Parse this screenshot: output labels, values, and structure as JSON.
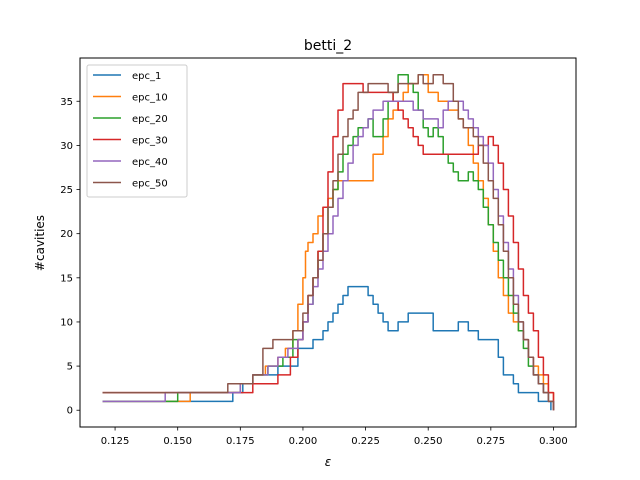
{
  "chart_data": {
    "type": "line",
    "title": "betti_2",
    "xlabel": "ε",
    "ylabel": "#cavities",
    "xlim": [
      0.111,
      0.309
    ],
    "ylim": [
      -1.9,
      39.9
    ],
    "x_ticks": [
      0.125,
      0.15,
      0.175,
      0.2,
      0.225,
      0.25,
      0.275,
      0.3
    ],
    "x_tick_labels": [
      "0.125",
      "0.150",
      "0.175",
      "0.200",
      "0.225",
      "0.250",
      "0.275",
      "0.300"
    ],
    "y_ticks": [
      0,
      5,
      10,
      15,
      20,
      25,
      30,
      35
    ],
    "y_tick_labels": [
      "0",
      "5",
      "10",
      "15",
      "20",
      "25",
      "30",
      "35"
    ],
    "grid": false,
    "legend_position": "top-left",
    "series": [
      {
        "name": "epc_1",
        "color": "#1f77b4",
        "x": [
          0.12,
          0.17,
          0.172,
          0.176,
          0.18,
          0.184,
          0.19,
          0.198,
          0.204,
          0.208,
          0.21,
          0.212,
          0.214,
          0.216,
          0.218,
          0.224,
          0.226,
          0.228,
          0.23,
          0.232,
          0.234,
          0.238,
          0.242,
          0.25,
          0.252,
          0.26,
          0.262,
          0.266,
          0.27,
          0.278,
          0.28,
          0.284,
          0.286,
          0.288,
          0.29,
          0.294,
          0.296,
          0.298,
          0.299
        ],
        "y": [
          1,
          1,
          2,
          3,
          4,
          4,
          5,
          7,
          8,
          9,
          10,
          11,
          12,
          13,
          14,
          14,
          13,
          12,
          11,
          10,
          9,
          10,
          11,
          11,
          9,
          9,
          10,
          9,
          8,
          6,
          4,
          3,
          2,
          2,
          2,
          1,
          1,
          1,
          0
        ]
      },
      {
        "name": "epc_10",
        "color": "#ff7f0e",
        "x": [
          0.12,
          0.14,
          0.15,
          0.155,
          0.175,
          0.18,
          0.185,
          0.19,
          0.193,
          0.196,
          0.198,
          0.2,
          0.201,
          0.202,
          0.204,
          0.206,
          0.208,
          0.21,
          0.212,
          0.214,
          0.218,
          0.222,
          0.226,
          0.228,
          0.232,
          0.234,
          0.236,
          0.238,
          0.24,
          0.242,
          0.244,
          0.246,
          0.25,
          0.254,
          0.258,
          0.262,
          0.264,
          0.266,
          0.268,
          0.27,
          0.272,
          0.274,
          0.276,
          0.278,
          0.28,
          0.282,
          0.284,
          0.286,
          0.288,
          0.29,
          0.292,
          0.294,
          0.296,
          0.298,
          0.3
        ],
        "y": [
          1,
          1,
          1,
          2,
          3,
          4,
          5,
          6,
          7,
          9,
          12,
          15,
          18,
          19,
          20,
          22,
          23,
          24,
          25,
          26,
          26,
          26,
          26,
          29,
          31,
          33,
          34,
          35,
          36,
          37,
          37,
          38,
          36,
          35,
          34,
          33,
          32,
          30,
          28,
          26,
          24,
          21,
          18,
          15,
          13,
          11,
          10,
          9,
          8,
          6,
          5,
          4,
          3,
          2,
          0
        ]
      },
      {
        "name": "epc_20",
        "color": "#2ca02c",
        "x": [
          0.12,
          0.13,
          0.145,
          0.15,
          0.16,
          0.165,
          0.175,
          0.18,
          0.186,
          0.192,
          0.196,
          0.2,
          0.202,
          0.204,
          0.206,
          0.208,
          0.21,
          0.212,
          0.214,
          0.216,
          0.218,
          0.22,
          0.222,
          0.226,
          0.228,
          0.232,
          0.234,
          0.236,
          0.238,
          0.24,
          0.242,
          0.244,
          0.246,
          0.248,
          0.25,
          0.252,
          0.254,
          0.256,
          0.258,
          0.26,
          0.262,
          0.264,
          0.266,
          0.268,
          0.27,
          0.272,
          0.274,
          0.276,
          0.278,
          0.28,
          0.282,
          0.284,
          0.286,
          0.288,
          0.29,
          0.292,
          0.294,
          0.296,
          0.298,
          0.3
        ],
        "y": [
          1,
          1,
          1,
          2,
          2,
          2,
          3,
          4,
          5,
          6,
          8,
          10,
          12,
          15,
          18,
          20,
          23,
          25,
          27,
          29,
          30,
          31,
          32,
          33,
          31,
          33,
          35,
          36,
          38,
          38,
          37,
          36,
          34,
          32,
          31,
          32,
          31,
          29,
          28,
          27,
          26,
          26,
          27,
          26,
          25,
          23,
          21,
          19,
          17,
          15,
          13,
          11,
          9,
          7,
          5,
          4,
          3,
          2,
          1,
          0
        ]
      },
      {
        "name": "epc_30",
        "color": "#d62728",
        "x": [
          0.12,
          0.16,
          0.18,
          0.19,
          0.195,
          0.198,
          0.2,
          0.202,
          0.204,
          0.206,
          0.208,
          0.21,
          0.212,
          0.214,
          0.216,
          0.222,
          0.224,
          0.228,
          0.232,
          0.236,
          0.238,
          0.24,
          0.242,
          0.244,
          0.246,
          0.248,
          0.25,
          0.252,
          0.254,
          0.256,
          0.26,
          0.268,
          0.27,
          0.272,
          0.274,
          0.276,
          0.278,
          0.28,
          0.282,
          0.284,
          0.286,
          0.288,
          0.29,
          0.292,
          0.294,
          0.296,
          0.298,
          0.3
        ],
        "y": [
          2,
          2,
          3,
          4,
          6,
          8,
          10,
          13,
          15,
          18,
          23,
          27,
          31,
          34,
          37,
          37,
          36,
          36,
          36,
          35,
          34,
          33,
          32,
          31,
          30,
          29,
          29,
          29,
          29,
          29,
          29,
          29,
          30,
          30,
          31,
          30,
          28,
          25,
          22,
          19,
          16,
          13,
          11,
          9,
          6,
          4,
          2,
          0
        ]
      },
      {
        "name": "epc_40",
        "color": "#9467bd",
        "x": [
          0.12,
          0.13,
          0.14,
          0.145,
          0.165,
          0.175,
          0.18,
          0.186,
          0.19,
          0.194,
          0.198,
          0.2,
          0.202,
          0.204,
          0.206,
          0.208,
          0.21,
          0.212,
          0.214,
          0.216,
          0.218,
          0.22,
          0.222,
          0.224,
          0.226,
          0.228,
          0.232,
          0.236,
          0.24,
          0.244,
          0.248,
          0.252,
          0.254,
          0.256,
          0.258,
          0.26,
          0.264,
          0.266,
          0.268,
          0.27,
          0.272,
          0.274,
          0.276,
          0.278,
          0.28,
          0.282,
          0.284,
          0.286,
          0.288,
          0.29,
          0.292,
          0.294,
          0.296,
          0.298,
          0.3
        ],
        "y": [
          1,
          1,
          1,
          2,
          2,
          3,
          4,
          5,
          6,
          7,
          8,
          10,
          12,
          14,
          16,
          18,
          20,
          22,
          24,
          26,
          28,
          30,
          31,
          32,
          33,
          34,
          35,
          35,
          35,
          34,
          33,
          33,
          32,
          34,
          35,
          35,
          34,
          33,
          32,
          31,
          30,
          28,
          25,
          22,
          19,
          16,
          13,
          10,
          8,
          6,
          4,
          3,
          2,
          1,
          0
        ]
      },
      {
        "name": "epc_50",
        "color": "#8c564b",
        "x": [
          0.12,
          0.16,
          0.17,
          0.176,
          0.18,
          0.184,
          0.188,
          0.192,
          0.196,
          0.2,
          0.202,
          0.204,
          0.206,
          0.208,
          0.21,
          0.212,
          0.214,
          0.216,
          0.218,
          0.22,
          0.222,
          0.226,
          0.23,
          0.234,
          0.238,
          0.242,
          0.246,
          0.248,
          0.252,
          0.256,
          0.26,
          0.262,
          0.264,
          0.268,
          0.27,
          0.272,
          0.274,
          0.276,
          0.278,
          0.28,
          0.282,
          0.284,
          0.286,
          0.288,
          0.29,
          0.292,
          0.294,
          0.296,
          0.298,
          0.3
        ],
        "y": [
          2,
          2,
          3,
          3,
          4,
          7,
          8,
          8,
          9,
          11,
          13,
          15,
          17,
          20,
          23,
          26,
          29,
          31,
          33,
          34,
          36,
          37,
          37,
          36,
          37,
          37,
          38,
          37,
          38,
          37,
          35,
          33,
          32,
          31,
          30,
          28,
          26,
          24,
          21,
          18,
          15,
          12,
          10,
          8,
          6,
          4,
          3,
          2,
          1,
          0
        ]
      }
    ]
  }
}
